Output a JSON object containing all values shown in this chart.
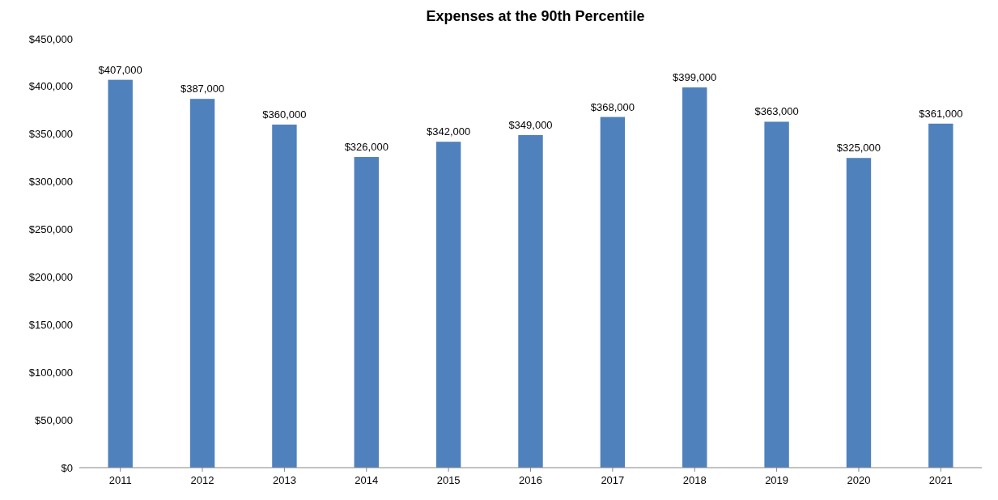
{
  "chart_data": {
    "type": "bar",
    "title": "Expenses at the 90th Percentile",
    "categories": [
      "2011",
      "2012",
      "2013",
      "2014",
      "2015",
      "2016",
      "2017",
      "2018",
      "2019",
      "2020",
      "2021"
    ],
    "values": [
      407000,
      387000,
      360000,
      326000,
      342000,
      349000,
      368000,
      399000,
      363000,
      325000,
      361000
    ],
    "value_labels": [
      "$407,000",
      "$387,000",
      "$360,000",
      "$326,000",
      "$342,000",
      "$349,000",
      "$368,000",
      "$399,000",
      "$363,000",
      "$325,000",
      "$361,000"
    ],
    "color": "#4f81bd",
    "ylim": [
      0,
      450000
    ],
    "yticks": [
      {
        "value": 0,
        "label": "$0"
      },
      {
        "value": 50000,
        "label": "$50,000"
      },
      {
        "value": 100000,
        "label": "$100,000"
      },
      {
        "value": 150000,
        "label": "$150,000"
      },
      {
        "value": 200000,
        "label": "$200,000"
      },
      {
        "value": 250000,
        "label": "$250,000"
      },
      {
        "value": 300000,
        "label": "$300,000"
      },
      {
        "value": 350000,
        "label": "$350,000"
      },
      {
        "value": 400000,
        "label": "$400,000"
      },
      {
        "value": 450000,
        "label": "$450,000"
      }
    ],
    "grid": false
  }
}
